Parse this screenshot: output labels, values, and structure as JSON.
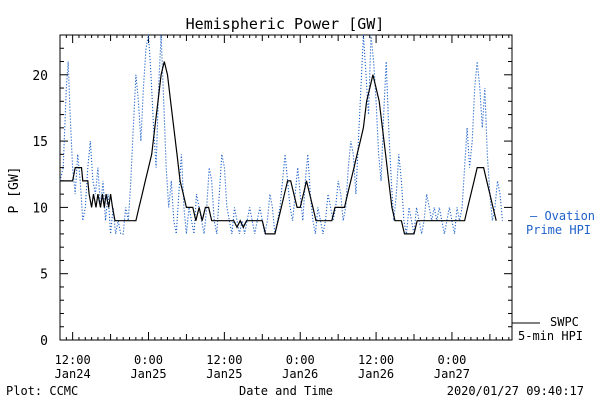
{
  "chart_data": {
    "type": "line",
    "title": "Hemispheric Power [GW]",
    "xlabel": "Date and Time",
    "ylabel": "P [GW]",
    "ylim": [
      0,
      23
    ],
    "yticks": [
      0,
      5,
      10,
      15,
      20
    ],
    "x_ticks": [
      {
        "hour": 12,
        "line1": "12:00",
        "line2": "Jan24"
      },
      {
        "hour": 24,
        "line1": "0:00",
        "line2": "Jan25"
      },
      {
        "hour": 36,
        "line1": "12:00",
        "line2": "Jan25"
      },
      {
        "hour": 48,
        "line1": "0:00",
        "line2": "Jan26"
      },
      {
        "hour": 60,
        "line1": "12:00",
        "line2": "Jan26"
      },
      {
        "hour": 72,
        "line1": "0:00",
        "line2": "Jan27"
      }
    ],
    "xlim": [
      10,
      81.5
    ],
    "grid": false,
    "series": [
      {
        "name": "SWPC 5-min HPI",
        "color": "#000000",
        "style": "solid",
        "points": [
          [
            10,
            12
          ],
          [
            12,
            12
          ],
          [
            12.4,
            13
          ],
          [
            13.4,
            13
          ],
          [
            13.6,
            12
          ],
          [
            14.4,
            12
          ],
          [
            14.6,
            11
          ],
          [
            15,
            10
          ],
          [
            15.3,
            11
          ],
          [
            15.7,
            10
          ],
          [
            16,
            11
          ],
          [
            16.4,
            10
          ],
          [
            16.7,
            11
          ],
          [
            17,
            10
          ],
          [
            17.3,
            11
          ],
          [
            17.7,
            10
          ],
          [
            18,
            11
          ],
          [
            18.3,
            10
          ],
          [
            18.7,
            9
          ],
          [
            19,
            9
          ],
          [
            22,
            9
          ],
          [
            22.5,
            10
          ],
          [
            23,
            11
          ],
          [
            23.5,
            12
          ],
          [
            24,
            13
          ],
          [
            24.5,
            14
          ],
          [
            25,
            16
          ],
          [
            25.5,
            18
          ],
          [
            26,
            20
          ],
          [
            26.5,
            21
          ],
          [
            27,
            20
          ],
          [
            27.5,
            18
          ],
          [
            28,
            16
          ],
          [
            28.5,
            14
          ],
          [
            29,
            12
          ],
          [
            29.5,
            11
          ],
          [
            30,
            10
          ],
          [
            30.5,
            10
          ],
          [
            31,
            10
          ],
          [
            31.5,
            9
          ],
          [
            32,
            10
          ],
          [
            32.5,
            9
          ],
          [
            33,
            10
          ],
          [
            33.5,
            10
          ],
          [
            34,
            9
          ],
          [
            35,
            9
          ],
          [
            35.5,
            9
          ],
          [
            36,
            9
          ],
          [
            37,
            9
          ],
          [
            37.5,
            9
          ],
          [
            38,
            8.5
          ],
          [
            38.5,
            9
          ],
          [
            39,
            8.5
          ],
          [
            39.5,
            9
          ],
          [
            40,
            9
          ],
          [
            41,
            9
          ],
          [
            42,
            9
          ],
          [
            42.5,
            8
          ],
          [
            44,
            8
          ],
          [
            44.5,
            9
          ],
          [
            45,
            10
          ],
          [
            45.5,
            11
          ],
          [
            46,
            12
          ],
          [
            46.5,
            12
          ],
          [
            47,
            11
          ],
          [
            47.5,
            10
          ],
          [
            48,
            10
          ],
          [
            48.5,
            11
          ],
          [
            49,
            12
          ],
          [
            49.5,
            11
          ],
          [
            50,
            10
          ],
          [
            50.5,
            9
          ],
          [
            51,
            9
          ],
          [
            52,
            9
          ],
          [
            53,
            9
          ],
          [
            53.5,
            10
          ],
          [
            54,
            10
          ],
          [
            55,
            10
          ],
          [
            55.5,
            11
          ],
          [
            56,
            12
          ],
          [
            56.5,
            13
          ],
          [
            57,
            14
          ],
          [
            57.5,
            15
          ],
          [
            58,
            16
          ],
          [
            58.5,
            18
          ],
          [
            59,
            19
          ],
          [
            59.5,
            20
          ],
          [
            60,
            19
          ],
          [
            60.5,
            18
          ],
          [
            61,
            16
          ],
          [
            61.5,
            14
          ],
          [
            62,
            12
          ],
          [
            62.5,
            10
          ],
          [
            63,
            9
          ],
          [
            63.5,
            9
          ],
          [
            64,
            9
          ],
          [
            64.5,
            8
          ],
          [
            65,
            8
          ],
          [
            66,
            8
          ],
          [
            66.5,
            9
          ],
          [
            67,
            9
          ],
          [
            68,
            9
          ],
          [
            69,
            9
          ],
          [
            70,
            9
          ],
          [
            71,
            9
          ],
          [
            72,
            9
          ],
          [
            73,
            9
          ],
          [
            74,
            9
          ],
          [
            74.5,
            10
          ],
          [
            75,
            11
          ],
          [
            75.5,
            12
          ],
          [
            76,
            13
          ],
          [
            76.5,
            13
          ],
          [
            77,
            13
          ],
          [
            77.5,
            12
          ],
          [
            78,
            11
          ],
          [
            78.5,
            10
          ],
          [
            79,
            9
          ]
        ]
      },
      {
        "name": "Ovation Prime HPI",
        "color": "#1f62c9",
        "style": "dotted",
        "points": [
          [
            10,
            12
          ],
          [
            10.5,
            13
          ],
          [
            11,
            19
          ],
          [
            11.3,
            21
          ],
          [
            11.6,
            17
          ],
          [
            12,
            13
          ],
          [
            12.4,
            11
          ],
          [
            12.8,
            14
          ],
          [
            13.2,
            12
          ],
          [
            13.6,
            9
          ],
          [
            14,
            10
          ],
          [
            14.4,
            13
          ],
          [
            14.8,
            15
          ],
          [
            15.2,
            12
          ],
          [
            15.6,
            11
          ],
          [
            16,
            13
          ],
          [
            16.4,
            10
          ],
          [
            16.8,
            12
          ],
          [
            17.2,
            9
          ],
          [
            17.6,
            11
          ],
          [
            18,
            8
          ],
          [
            18.4,
            10
          ],
          [
            18.8,
            8
          ],
          [
            19.2,
            9
          ],
          [
            19.6,
            8
          ],
          [
            20,
            8
          ],
          [
            20.4,
            10
          ],
          [
            20.8,
            9
          ],
          [
            21.2,
            12
          ],
          [
            21.6,
            16
          ],
          [
            22,
            20
          ],
          [
            22.4,
            18
          ],
          [
            22.8,
            15
          ],
          [
            23.2,
            19
          ],
          [
            23.6,
            22
          ],
          [
            24,
            23
          ],
          [
            24.4,
            20
          ],
          [
            24.8,
            16
          ],
          [
            25.2,
            13
          ],
          [
            25.6,
            19
          ],
          [
            26,
            23
          ],
          [
            26.4,
            18
          ],
          [
            26.8,
            13
          ],
          [
            27.2,
            10
          ],
          [
            27.6,
            12
          ],
          [
            28,
            9
          ],
          [
            28.4,
            8
          ],
          [
            28.8,
            11
          ],
          [
            29.2,
            14
          ],
          [
            29.6,
            10
          ],
          [
            30,
            8
          ],
          [
            30.4,
            10
          ],
          [
            30.8,
            9
          ],
          [
            31.2,
            8
          ],
          [
            31.6,
            11
          ],
          [
            32,
            10
          ],
          [
            32.4,
            9
          ],
          [
            32.8,
            8
          ],
          [
            33.2,
            10
          ],
          [
            33.6,
            13
          ],
          [
            34,
            12
          ],
          [
            34.4,
            9
          ],
          [
            34.8,
            8
          ],
          [
            35.2,
            11
          ],
          [
            35.6,
            14
          ],
          [
            36,
            13
          ],
          [
            36.4,
            10
          ],
          [
            36.8,
            9
          ],
          [
            37.2,
            8
          ],
          [
            37.6,
            10
          ],
          [
            38,
            9
          ],
          [
            38.4,
            8
          ],
          [
            38.8,
            9
          ],
          [
            39.2,
            8
          ],
          [
            39.6,
            9
          ],
          [
            40,
            10
          ],
          [
            40.4,
            9
          ],
          [
            40.8,
            8
          ],
          [
            41.2,
            9
          ],
          [
            41.6,
            10
          ],
          [
            42,
            9
          ],
          [
            42.4,
            8
          ],
          [
            42.8,
            9
          ],
          [
            43.2,
            11
          ],
          [
            43.6,
            10
          ],
          [
            44,
            8
          ],
          [
            44.4,
            9
          ],
          [
            44.8,
            10
          ],
          [
            45.2,
            12
          ],
          [
            45.6,
            14
          ],
          [
            46,
            12
          ],
          [
            46.4,
            10
          ],
          [
            46.8,
            9
          ],
          [
            47.2,
            11
          ],
          [
            47.6,
            13
          ],
          [
            48,
            11
          ],
          [
            48.4,
            9
          ],
          [
            48.8,
            12
          ],
          [
            49.2,
            14
          ],
          [
            49.6,
            11
          ],
          [
            50,
            9
          ],
          [
            50.4,
            8
          ],
          [
            50.8,
            10
          ],
          [
            51.2,
            9
          ],
          [
            51.6,
            8
          ],
          [
            52,
            9
          ],
          [
            52.4,
            11
          ],
          [
            52.8,
            10
          ],
          [
            53.2,
            9
          ],
          [
            53.6,
            10
          ],
          [
            54,
            12
          ],
          [
            54.4,
            11
          ],
          [
            54.8,
            9
          ],
          [
            55.2,
            10
          ],
          [
            55.6,
            13
          ],
          [
            56,
            15
          ],
          [
            56.4,
            14
          ],
          [
            56.8,
            11
          ],
          [
            57.2,
            15
          ],
          [
            57.6,
            19
          ],
          [
            58,
            23
          ],
          [
            58.4,
            20
          ],
          [
            58.8,
            17
          ],
          [
            59.2,
            23
          ],
          [
            59.6,
            21
          ],
          [
            60,
            18
          ],
          [
            60.4,
            14
          ],
          [
            60.8,
            12
          ],
          [
            61.2,
            17
          ],
          [
            61.6,
            21
          ],
          [
            62,
            16
          ],
          [
            62.4,
            12
          ],
          [
            62.8,
            9
          ],
          [
            63.2,
            11
          ],
          [
            63.6,
            14
          ],
          [
            64,
            12
          ],
          [
            64.4,
            9
          ],
          [
            64.8,
            8
          ],
          [
            65.2,
            10
          ],
          [
            65.6,
            9
          ],
          [
            66,
            8
          ],
          [
            66.4,
            10
          ],
          [
            66.8,
            9
          ],
          [
            67.2,
            8
          ],
          [
            67.6,
            9
          ],
          [
            68,
            11
          ],
          [
            68.4,
            10
          ],
          [
            68.8,
            9
          ],
          [
            69.2,
            10
          ],
          [
            69.6,
            9
          ],
          [
            70,
            10
          ],
          [
            70.4,
            9
          ],
          [
            70.8,
            8
          ],
          [
            71.2,
            9
          ],
          [
            71.6,
            10
          ],
          [
            72,
            9
          ],
          [
            72.4,
            8
          ],
          [
            72.8,
            10
          ],
          [
            73.2,
            9
          ],
          [
            73.6,
            10
          ],
          [
            74,
            13
          ],
          [
            74.4,
            16
          ],
          [
            74.8,
            13
          ],
          [
            75.2,
            15
          ],
          [
            75.6,
            19
          ],
          [
            76,
            21
          ],
          [
            76.4,
            19
          ],
          [
            76.8,
            16
          ],
          [
            77.2,
            19
          ],
          [
            77.6,
            14
          ],
          [
            78,
            11
          ],
          [
            78.4,
            9
          ],
          [
            78.8,
            10
          ],
          [
            79.2,
            12
          ],
          [
            79.6,
            11
          ],
          [
            80,
            9
          ]
        ]
      }
    ],
    "legend": [
      {
        "color": "#1f62c9",
        "line1": "— Ovation",
        "line2": "Prime HPI"
      },
      {
        "color": "#000000",
        "line1": "SWPC",
        "line2": "5-min HPI"
      }
    ]
  },
  "footer": {
    "left": "Plot: CCMC",
    "center": "Date and Time",
    "right": "2020/01/27 09:40:17"
  }
}
